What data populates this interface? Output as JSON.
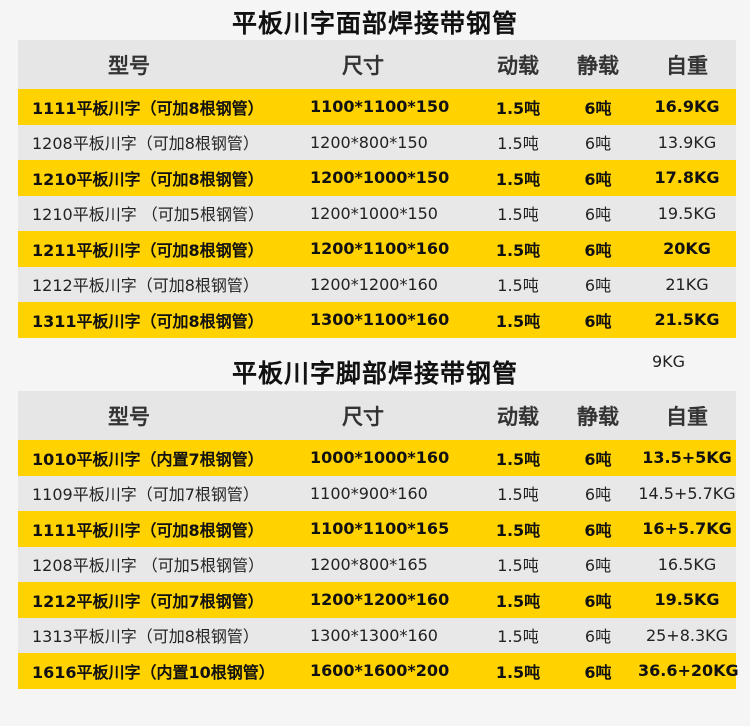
{
  "colors": {
    "highlight_row": "#ffd200",
    "alt_row": "#e8e8e8",
    "header_row": "#e6e6e6",
    "background": "#f5f5f5"
  },
  "headers": [
    "型号",
    "尺寸",
    "动载",
    "静载",
    "自重"
  ],
  "table1": {
    "title": "平板川字面部焊接带钢管",
    "rows": [
      [
        "1111平板川字（可加8根钢管）",
        "1100*1100*150",
        "1.5吨",
        "6吨",
        "16.9KG"
      ],
      [
        "1208平板川字（可加8根钢管）",
        "1200*800*150",
        "1.5吨",
        "6吨",
        "13.9KG"
      ],
      [
        "1210平板川字（可加8根钢管）",
        "1200*1000*150",
        "1.5吨",
        "6吨",
        "17.8KG"
      ],
      [
        "1210平板川字 （可加5根钢管）",
        "1200*1000*150",
        "1.5吨",
        "6吨",
        "19.5KG"
      ],
      [
        "1211平板川字（可加8根钢管）",
        "1200*1100*160",
        "1.5吨",
        "6吨",
        "20KG"
      ],
      [
        "1212平板川字（可加8根钢管）",
        "1200*1200*160",
        "1.5吨",
        "6吨",
        "21KG"
      ],
      [
        "1311平板川字（可加8根钢管）",
        "1300*1100*160",
        "1.5吨",
        "6吨",
        "21.5KG"
      ]
    ]
  },
  "stray_note": "9KG",
  "table2": {
    "title": "平板川字脚部焊接带钢管",
    "rows": [
      [
        "1010平板川字（内置7根钢管）",
        "1000*1000*160",
        "1.5吨",
        "6吨",
        "13.5+5KG"
      ],
      [
        "1109平板川字（可加7根钢管）",
        "1100*900*160",
        "1.5吨",
        "6吨",
        "14.5+5.7KG"
      ],
      [
        "1111平板川字（可加8根钢管）",
        "1100*1100*165",
        "1.5吨",
        "6吨",
        "16+5.7KG"
      ],
      [
        "1208平板川字 （可加5根钢管）",
        "1200*800*165",
        "1.5吨",
        "6吨",
        "16.5KG"
      ],
      [
        "1212平板川字（可加7根钢管）",
        "1200*1200*160",
        "1.5吨",
        "6吨",
        "19.5KG"
      ],
      [
        "1313平板川字（可加8根钢管）",
        "1300*1300*160",
        "1.5吨",
        "6吨",
        "25+8.3KG"
      ],
      [
        "1616平板川字（内置10根钢管）",
        "1600*1600*200",
        "1.5吨",
        "6吨",
        "36.6+20KG"
      ]
    ]
  }
}
